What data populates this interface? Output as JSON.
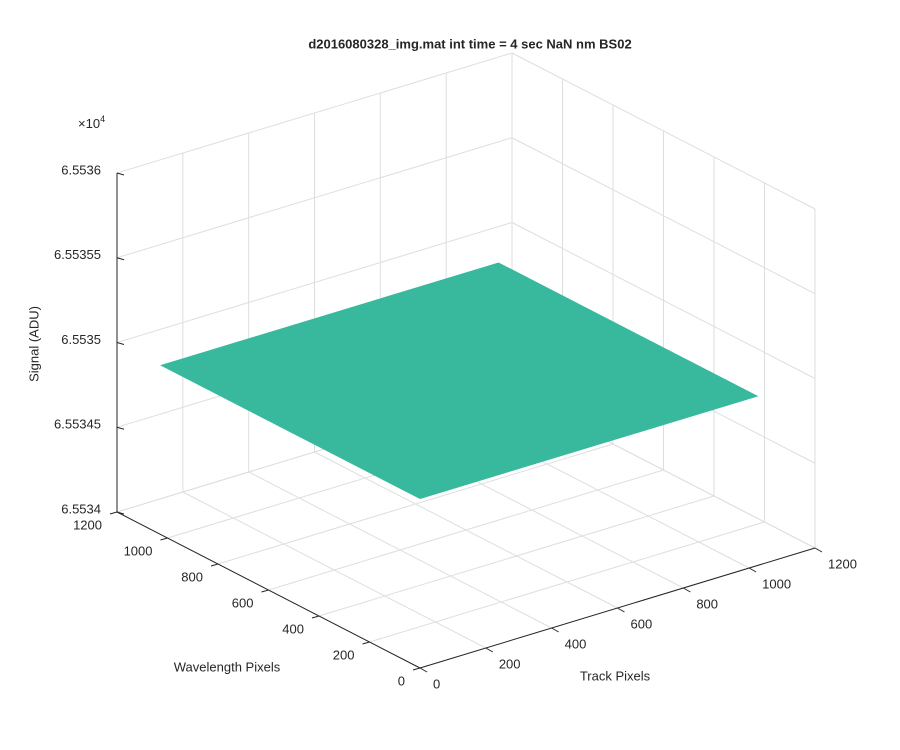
{
  "chart_data": {
    "type": "surface",
    "title": "d2016080328_img.mat int time = 4 sec  NaN nm BS02",
    "xlabel": "Track Pixels",
    "ylabel": "Wavelength Pixels",
    "zlabel": "Signal (ADU)",
    "z_multiplier_base": "×10",
    "z_multiplier_exponent": "4",
    "x": [
      0,
      1024
    ],
    "y": [
      0,
      1024
    ],
    "z": [
      [
        6.5535,
        6.5535
      ],
      [
        6.5535,
        6.5535
      ]
    ],
    "color": "#38b99e",
    "xlim": [
      0,
      1200
    ],
    "xticks": [
      0,
      200,
      400,
      600,
      800,
      1000,
      1200
    ],
    "ylim": [
      0,
      1200
    ],
    "yticks": [
      0,
      200,
      400,
      600,
      800,
      1000,
      1200
    ],
    "zlim": [
      6.5534,
      6.5536
    ],
    "zticks": [
      6.5534,
      6.55345,
      6.5535,
      6.55355,
      6.5536
    ],
    "grid": true
  }
}
